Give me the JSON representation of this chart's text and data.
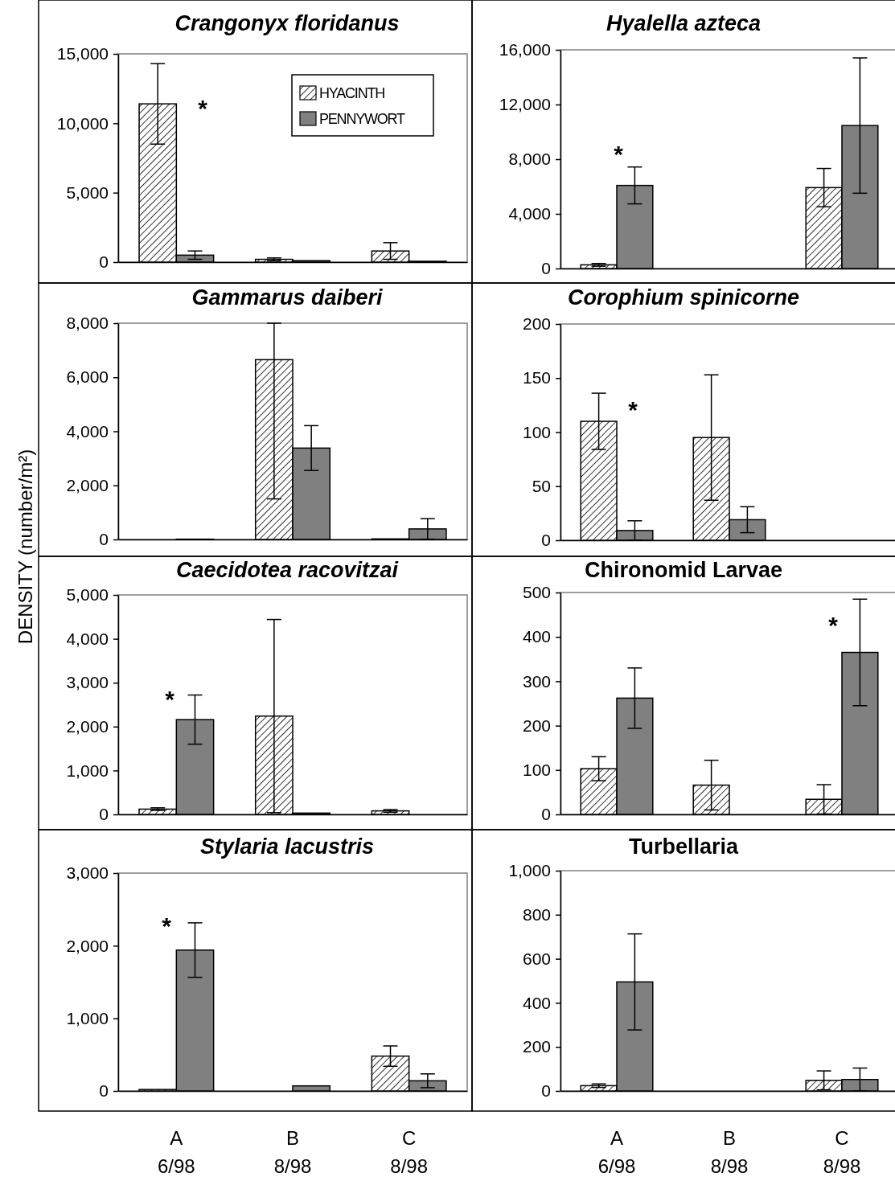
{
  "chart_data": [
    {
      "type": "bar",
      "title": "Crangonyx floridanus",
      "categories": [
        null,
        null,
        null
      ],
      "ylim": [
        0,
        15000
      ],
      "yticks": [
        0,
        {
          "value": 5000,
          "label": "5,000"
        },
        {
          "value": 10000,
          "label": "10,000"
        },
        {
          "value": 15000,
          "label": "15,000"
        }
      ],
      "legend": "top right",
      "tick_labels": "y",
      "annotations": [
        "*"
      ],
      "series": [
        {
          "name": "HYACINTH",
          "color": "#000000",
          "values": [
            11400,
            200,
            800
          ],
          "errors": [
            2900,
            100,
            600
          ]
        },
        {
          "name": "PENNYWORT",
          "color": "#808080",
          "values": [
            500,
            100,
            60
          ],
          "errors": [
            300,
            null,
            null
          ]
        }
      ]
    },
    {
      "type": "bar",
      "title": "Hyalella azteca",
      "categories": [
        null,
        null,
        null
      ],
      "ylim": [
        0,
        16000
      ],
      "yticks": [
        0,
        {
          "value": 4000,
          "label": "4,000"
        },
        {
          "value": 8000,
          "label": "8,000"
        },
        {
          "value": 12000,
          "label": "12,000"
        },
        {
          "value": 16000,
          "label": "16,000"
        }
      ],
      "tick_labels": "y",
      "annotations": [
        "*"
      ],
      "series": [
        {
          "color": "#000000",
          "values": [
            270,
            0,
            5920
          ],
          "errors": [
            100,
            null,
            1400
          ]
        },
        {
          "color": "#808080",
          "values": [
            6080,
            0,
            10460
          ],
          "errors": [
            1350,
            null,
            4950
          ]
        }
      ]
    },
    {
      "type": "bar",
      "title": "Gammarus daiberi",
      "ylabel": "DENSITY (number/m²)",
      "categories": [
        null,
        null,
        null
      ],
      "ylim": [
        0,
        8000
      ],
      "yticks": [
        0,
        {
          "value": 2000,
          "label": "2,000"
        },
        {
          "value": 4000,
          "label": "4,000"
        },
        {
          "value": 6000,
          "label": "6,000"
        },
        {
          "value": 8000,
          "label": "8,000"
        }
      ],
      "tick_labels": "y",
      "series": [
        {
          "color": "#000000",
          "values": [
            0,
            6650,
            20
          ],
          "errors": [
            null,
            [
              1500,
              8000
            ],
            null
          ]
        },
        {
          "color": "#808080",
          "values": [
            10,
            3380,
            390
          ],
          "errors": [
            null,
            830,
            380
          ]
        }
      ]
    },
    {
      "type": "bar",
      "title": "Corophium spinicorne",
      "categories": [
        null,
        null,
        null
      ],
      "ylim": [
        0,
        200
      ],
      "yticks": [
        0,
        50,
        100,
        150,
        200
      ],
      "tick_labels": "y",
      "annotations": [
        "*"
      ],
      "series": [
        {
          "color": "#000000",
          "values": [
            110,
            95,
            0
          ],
          "errors": [
            26,
            58,
            null
          ]
        },
        {
          "color": "#808080",
          "values": [
            9,
            19,
            0
          ],
          "errors": [
            9,
            12,
            null
          ]
        }
      ]
    },
    {
      "type": "bar",
      "title": "Caecidotea racovitzai",
      "categories": [
        null,
        null,
        null
      ],
      "ylim": [
        0,
        5000
      ],
      "yticks": [
        0,
        {
          "value": 1000,
          "label": "1,000"
        },
        {
          "value": 2000,
          "label": "2,000"
        },
        {
          "value": 3000,
          "label": "3,000"
        },
        {
          "value": 4000,
          "label": "4,000"
        },
        {
          "value": 5000,
          "label": "5,000"
        }
      ],
      "tick_labels": "y",
      "annotations": [
        "*"
      ],
      "series": [
        {
          "color": "#000000",
          "values": [
            120,
            2240,
            80
          ],
          "errors": [
            30,
            2200,
            30
          ]
        },
        {
          "color": "#808080",
          "values": [
            2160,
            30,
            0
          ],
          "errors": [
            560,
            null,
            null
          ]
        }
      ]
    },
    {
      "type": "bar",
      "title": "Chironomid Larvae",
      "categories": [
        null,
        null,
        null
      ],
      "ylim": [
        0,
        500
      ],
      "yticks": [
        0,
        100,
        200,
        300,
        400,
        500
      ],
      "tick_labels": "y",
      "annotations": [
        "*"
      ],
      "series": [
        {
          "color": "#000000",
          "values": [
            103,
            66,
            34
          ],
          "errors": [
            27,
            56,
            33
          ]
        },
        {
          "color": "#808080",
          "values": [
            262,
            0,
            365
          ],
          "errors": [
            68,
            null,
            120
          ]
        }
      ]
    },
    {
      "type": "bar",
      "title": "Stylaria lacustris",
      "categories": [
        "A 6/98",
        "B 8/98",
        "C 8/98"
      ],
      "ylim": [
        0,
        3000
      ],
      "yticks": [
        0,
        {
          "value": 1000,
          "label": "1,000"
        },
        {
          "value": 2000,
          "label": "2,000"
        },
        {
          "value": 3000,
          "label": "3,000"
        }
      ],
      "annotations": [
        "*"
      ],
      "series": [
        {
          "color": "#000000",
          "values": [
            20,
            0,
            480
          ],
          "errors": [
            null,
            null,
            140
          ]
        },
        {
          "color": "#808080",
          "values": [
            1940,
            70,
            140
          ],
          "errors": [
            375,
            null,
            95
          ]
        }
      ]
    },
    {
      "type": "bar",
      "title": "Turbellaria",
      "categories": [
        "A 6/98",
        "B 8/98",
        "C 8/98"
      ],
      "ylim": [
        0,
        1000
      ],
      "yticks": [
        0,
        200,
        400,
        600,
        800,
        {
          "value": 1000,
          "label": "1,000"
        }
      ],
      "series": [
        {
          "color": "#000000",
          "values": [
            24,
            0,
            48
          ],
          "errors": [
            8,
            null,
            43
          ]
        },
        {
          "color": "#808080",
          "values": [
            495,
            0,
            52
          ],
          "errors": [
            218,
            null,
            52
          ]
        }
      ]
    }
  ]
}
